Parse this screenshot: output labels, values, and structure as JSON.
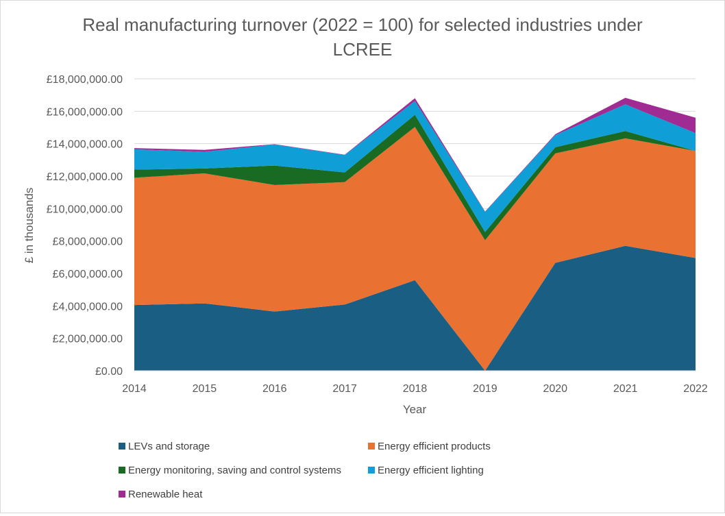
{
  "chart_data": {
    "type": "area",
    "stacked": true,
    "title": "Real manufacturing turnover (2022 = 100) for selected industries under LCREE",
    "title_lines": [
      "Real manufacturing turnover (2022 = 100) for selected industries under",
      "LCREE"
    ],
    "xlabel": "Year",
    "ylabel": "£ in thousands",
    "ylim": [
      0,
      18000000
    ],
    "y_ticks": [
      0,
      2000000,
      4000000,
      6000000,
      8000000,
      10000000,
      12000000,
      14000000,
      16000000,
      18000000
    ],
    "y_tick_labels": [
      "£0.00",
      "£2,000,000.00",
      "£4,000,000.00",
      "£6,000,000.00",
      "£8,000,000.00",
      "£10,000,000.00",
      "£12,000,000.00",
      "£14,000,000.00",
      "£16,000,000.00",
      "£18,000,000.00"
    ],
    "grid": true,
    "legend_position": "bottom",
    "categories": [
      "2014",
      "2015",
      "2016",
      "2017",
      "2018",
      "2019",
      "2020",
      "2021",
      "2022"
    ],
    "series": [
      {
        "name": "LEVs and storage",
        "color": "#1a5e84",
        "values": [
          4050000,
          4150000,
          3650000,
          4080000,
          5580000,
          0,
          6650000,
          7700000,
          6950000
        ]
      },
      {
        "name": "Energy efficient products",
        "color": "#e97132",
        "values": [
          7850000,
          8020000,
          7800000,
          7550000,
          9450000,
          8050000,
          6750000,
          6630000,
          6600000
        ]
      },
      {
        "name": "Energy monitoring, saving and control systems",
        "color": "#196b24",
        "values": [
          500000,
          300000,
          1200000,
          600000,
          750000,
          500000,
          380000,
          450000,
          0
        ]
      },
      {
        "name": "Energy efficient lighting",
        "color": "#0f9ed5",
        "values": [
          1250000,
          1030000,
          1300000,
          1070000,
          850000,
          1250000,
          750000,
          1650000,
          1100000
        ]
      },
      {
        "name": "Renewable heat",
        "color": "#a02b93",
        "values": [
          80000,
          120000,
          20000,
          20000,
          180000,
          20000,
          50000,
          400000,
          950000
        ]
      }
    ]
  }
}
